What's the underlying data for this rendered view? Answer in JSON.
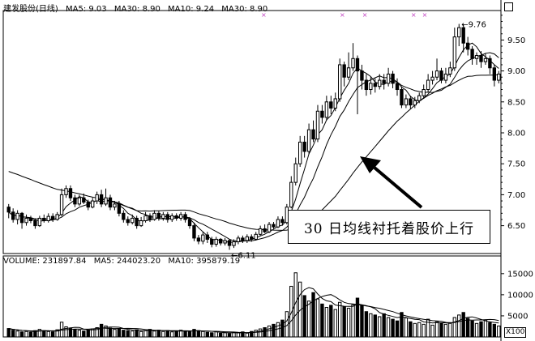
{
  "price_header": {
    "stock": "建发股份(日线)",
    "ma5": "MA5: 9.03",
    "ma30a": "MA30: 8.90",
    "ma10": "MA10: 9.24",
    "ma30b": "MA30: 8.90"
  },
  "volume_header": {
    "volume": "VOLUME: 231897.84",
    "ma5": "MA5: 244023.20",
    "ma10": "MA10: 395879.19"
  },
  "annotation": "30 日均线衬托着股价上行",
  "unit_label": "X100",
  "chart_data": [
    {
      "type": "candlestick",
      "title": "建发股份(日线)",
      "y_ticks": [
        6.5,
        7.0,
        7.5,
        8.0,
        8.5,
        9.0,
        9.5
      ],
      "ylim": [
        6.05,
        9.95
      ],
      "marks": {
        "low": "6.11",
        "high": "9.76"
      },
      "series": [
        {
          "name": "MA5",
          "value": 9.03
        },
        {
          "name": "MA10",
          "value": 9.24
        },
        {
          "name": "MA30",
          "value": 8.9
        }
      ],
      "candles": [
        [
          6.8,
          6.72,
          6.85,
          6.62
        ],
        [
          6.72,
          6.6,
          6.78,
          6.55
        ],
        [
          6.6,
          6.7,
          6.75,
          6.52
        ],
        [
          6.7,
          6.55,
          6.72,
          6.45
        ],
        [
          6.55,
          6.62,
          6.68,
          6.5
        ],
        [
          6.62,
          6.58,
          6.66,
          6.54
        ],
        [
          6.58,
          6.5,
          6.62,
          6.45
        ],
        [
          6.5,
          6.62,
          6.66,
          6.48
        ],
        [
          6.62,
          6.58,
          6.68,
          6.55
        ],
        [
          6.58,
          6.65,
          6.7,
          6.55
        ],
        [
          6.65,
          6.6,
          6.7,
          6.56
        ],
        [
          6.6,
          6.68,
          6.72,
          6.58
        ],
        [
          6.68,
          7.0,
          7.1,
          6.65
        ],
        [
          7.0,
          7.1,
          7.15,
          6.95
        ],
        [
          7.1,
          6.95,
          7.15,
          6.9
        ],
        [
          6.95,
          6.85,
          7.0,
          6.8
        ],
        [
          6.85,
          6.95,
          7.0,
          6.82
        ],
        [
          6.95,
          6.88,
          7.02,
          6.85
        ],
        [
          6.88,
          6.8,
          6.92,
          6.75
        ],
        [
          6.8,
          6.9,
          6.95,
          6.78
        ],
        [
          6.9,
          7.0,
          7.05,
          6.85
        ],
        [
          7.0,
          6.85,
          7.08,
          6.8
        ],
        [
          6.85,
          6.95,
          7.1,
          6.82
        ],
        [
          6.95,
          6.8,
          7.0,
          6.75
        ],
        [
          6.8,
          6.85,
          6.9,
          6.75
        ],
        [
          6.85,
          6.7,
          6.9,
          6.65
        ],
        [
          6.7,
          6.6,
          6.75,
          6.55
        ],
        [
          6.6,
          6.55,
          6.65,
          6.5
        ],
        [
          6.55,
          6.62,
          6.68,
          6.52
        ],
        [
          6.62,
          6.5,
          6.66,
          6.45
        ],
        [
          6.5,
          6.58,
          6.64,
          6.48
        ],
        [
          6.58,
          6.66,
          6.72,
          6.55
        ],
        [
          6.66,
          6.6,
          6.7,
          6.56
        ],
        [
          6.6,
          6.7,
          6.75,
          6.58
        ],
        [
          6.7,
          6.62,
          6.74,
          6.58
        ],
        [
          6.62,
          6.68,
          6.72,
          6.58
        ],
        [
          6.68,
          6.6,
          6.72,
          6.55
        ],
        [
          6.6,
          6.66,
          6.7,
          6.56
        ],
        [
          6.66,
          6.62,
          6.7,
          6.58
        ],
        [
          6.62,
          6.68,
          6.72,
          6.58
        ],
        [
          6.68,
          6.6,
          6.72,
          6.55
        ],
        [
          6.6,
          6.5,
          6.64,
          6.45
        ],
        [
          6.5,
          6.3,
          6.55,
          6.25
        ],
        [
          6.3,
          6.25,
          6.35,
          6.2
        ],
        [
          6.25,
          6.35,
          6.4,
          6.2
        ],
        [
          6.35,
          6.28,
          6.4,
          6.22
        ],
        [
          6.28,
          6.2,
          6.32,
          6.15
        ],
        [
          6.2,
          6.28,
          6.32,
          6.16
        ],
        [
          6.28,
          6.22,
          6.3,
          6.18
        ],
        [
          6.22,
          6.26,
          6.3,
          6.18
        ],
        [
          6.26,
          6.18,
          6.28,
          6.11
        ],
        [
          6.18,
          6.24,
          6.28,
          6.14
        ],
        [
          6.24,
          6.3,
          6.34,
          6.2
        ],
        [
          6.3,
          6.26,
          6.34,
          6.22
        ],
        [
          6.26,
          6.32,
          6.36,
          6.22
        ],
        [
          6.32,
          6.28,
          6.36,
          6.24
        ],
        [
          6.28,
          6.36,
          6.4,
          6.26
        ],
        [
          6.36,
          6.45,
          6.5,
          6.34
        ],
        [
          6.45,
          6.4,
          6.52,
          6.38
        ],
        [
          6.4,
          6.52,
          6.56,
          6.38
        ],
        [
          6.52,
          6.48,
          6.56,
          6.45
        ],
        [
          6.48,
          6.6,
          6.65,
          6.46
        ],
        [
          6.6,
          6.55,
          6.65,
          6.5
        ],
        [
          6.55,
          6.8,
          6.85,
          6.52
        ],
        [
          6.8,
          7.2,
          7.3,
          6.78
        ],
        [
          7.2,
          7.5,
          7.6,
          7.15
        ],
        [
          7.5,
          7.85,
          7.95,
          7.45
        ],
        [
          7.85,
          7.7,
          7.95,
          7.6
        ],
        [
          7.7,
          8.05,
          8.15,
          7.65
        ],
        [
          8.05,
          7.9,
          8.2,
          7.85
        ],
        [
          7.9,
          8.35,
          8.45,
          7.85
        ],
        [
          8.35,
          8.25,
          8.45,
          8.15
        ],
        [
          8.25,
          8.5,
          8.6,
          8.2
        ],
        [
          8.5,
          8.4,
          8.6,
          8.3
        ],
        [
          8.4,
          8.55,
          8.65,
          8.35
        ],
        [
          8.55,
          9.1,
          9.2,
          8.5
        ],
        [
          9.1,
          8.9,
          9.15,
          8.75
        ],
        [
          8.9,
          9.05,
          9.3,
          8.85
        ],
        [
          9.05,
          9.2,
          9.45,
          9.0
        ],
        [
          9.2,
          9.0,
          9.25,
          8.3
        ],
        [
          9.0,
          8.85,
          9.1,
          8.7
        ],
        [
          8.85,
          8.7,
          8.95,
          8.6
        ],
        [
          8.7,
          8.8,
          8.9,
          8.62
        ],
        [
          8.8,
          8.75,
          8.88,
          8.65
        ],
        [
          8.75,
          8.85,
          8.95,
          8.7
        ],
        [
          8.85,
          8.8,
          8.95,
          8.7
        ],
        [
          8.8,
          8.95,
          9.05,
          8.75
        ],
        [
          8.95,
          8.8,
          9.0,
          8.72
        ],
        [
          8.8,
          8.7,
          8.88,
          8.6
        ],
        [
          8.7,
          8.45,
          8.75,
          8.4
        ],
        [
          8.45,
          8.55,
          8.62,
          8.4
        ],
        [
          8.55,
          8.45,
          8.6,
          8.38
        ],
        [
          8.45,
          8.52,
          8.58,
          8.4
        ],
        [
          8.52,
          8.6,
          8.65,
          8.48
        ],
        [
          8.6,
          8.7,
          8.78,
          8.55
        ],
        [
          8.7,
          8.85,
          8.95,
          8.65
        ],
        [
          8.85,
          8.9,
          9.0,
          8.78
        ],
        [
          8.9,
          9.0,
          9.2,
          8.85
        ],
        [
          9.0,
          8.85,
          9.05,
          8.8
        ],
        [
          8.85,
          8.95,
          9.05,
          8.8
        ],
        [
          8.95,
          9.05,
          9.15,
          8.9
        ],
        [
          9.05,
          9.55,
          9.7,
          9.0
        ],
        [
          9.55,
          9.7,
          9.76,
          9.4
        ],
        [
          9.7,
          9.45,
          9.75,
          9.3
        ],
        [
          9.45,
          9.35,
          9.55,
          9.25
        ],
        [
          9.35,
          9.2,
          9.4,
          9.1
        ],
        [
          9.2,
          9.25,
          9.3,
          9.1
        ],
        [
          9.25,
          9.15,
          9.32,
          9.05
        ],
        [
          9.15,
          9.2,
          9.28,
          9.1
        ],
        [
          9.2,
          9.05,
          9.25,
          8.95
        ],
        [
          9.05,
          8.85,
          9.1,
          8.75
        ],
        [
          8.85,
          8.95,
          9.0,
          8.8
        ]
      ]
    },
    {
      "type": "bar",
      "title": "VOLUME",
      "y_ticks": [
        5000,
        10000,
        15000
      ],
      "ylim": [
        0,
        16500
      ],
      "unit": "X100",
      "series": [
        {
          "name": "MA5",
          "value": 244023.2
        },
        {
          "name": "MA10",
          "value": 395879.19
        }
      ],
      "values": [
        2000,
        1600,
        1400,
        1200,
        1300,
        1100,
        1500,
        1800,
        1500,
        1300,
        1200,
        1700,
        3500,
        2400,
        2000,
        1800,
        1600,
        1400,
        1600,
        1900,
        2200,
        3000,
        2600,
        2100,
        1800,
        2000,
        1600,
        1500,
        1400,
        1700,
        1300,
        1500,
        1800,
        1400,
        1600,
        1300,
        1500,
        1200,
        1400,
        1600,
        1300,
        1200,
        1800,
        1500,
        1300,
        1100,
        1000,
        1200,
        900,
        1000,
        800,
        1100,
        1000,
        1200,
        900,
        1300,
        1600,
        1900,
        2200,
        2600,
        3000,
        3400,
        4000,
        6000,
        12000,
        15200,
        13000,
        9800,
        8500,
        10500,
        9000,
        7800,
        7000,
        7500,
        6500,
        8200,
        7200,
        6800,
        7600,
        9200,
        7400,
        6000,
        5500,
        5200,
        4800,
        5500,
        4600,
        4200,
        3800,
        5800,
        4500,
        3600,
        3200,
        3400,
        3000,
        4200,
        2800,
        3600,
        3200,
        3000,
        3400,
        4600,
        5200,
        5800,
        4400,
        3800,
        3200,
        3600,
        4000,
        3400,
        3000,
        2600
      ]
    }
  ]
}
